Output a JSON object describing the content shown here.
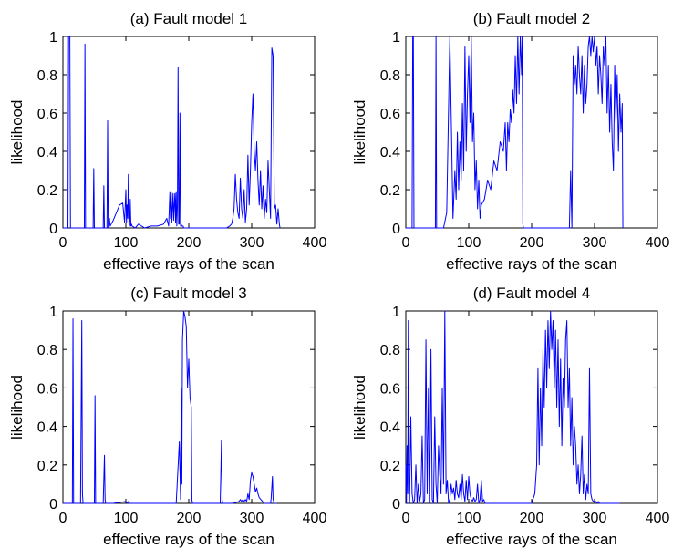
{
  "chart_data": [
    {
      "type": "line",
      "title": "(a) Fault model 1",
      "xlabel": "effective rays of the scan",
      "ylabel": "likelihood",
      "xlim": [
        0,
        400
      ],
      "ylim": [
        0,
        1
      ],
      "xticks": [
        "0",
        "100",
        "200",
        "300",
        "400"
      ],
      "yticks": [
        "0",
        "0.2",
        "0.4",
        "0.6",
        "0.8",
        "1"
      ],
      "series": [
        {
          "name": "likelihood",
          "color": "#0000ff",
          "x": [
            0,
            8,
            9,
            10,
            11,
            12,
            15,
            20,
            30,
            34,
            35,
            36,
            40,
            45,
            48,
            49,
            50,
            55,
            60,
            64,
            65,
            66,
            70,
            71,
            72,
            73,
            74,
            75,
            80,
            85,
            90,
            95,
            98,
            100,
            101,
            102,
            103,
            104,
            105,
            106,
            107,
            108,
            109,
            110,
            115,
            120,
            130,
            140,
            150,
            160,
            165,
            168,
            170,
            171,
            172,
            173,
            174,
            175,
            176,
            177,
            178,
            179,
            180,
            181,
            182,
            183,
            184,
            185,
            186,
            187,
            188,
            189,
            190,
            191,
            192,
            193,
            194,
            195,
            196,
            200,
            210,
            220,
            230,
            240,
            250,
            260,
            265,
            268,
            270,
            272,
            274,
            276,
            278,
            280,
            282,
            284,
            286,
            288,
            290,
            292,
            294,
            296,
            298,
            300,
            302,
            304,
            306,
            308,
            310,
            312,
            314,
            316,
            318,
            320,
            322,
            324,
            326,
            328,
            330,
            332,
            334,
            336,
            338,
            340,
            342,
            344,
            345
          ],
          "y": [
            0,
            0,
            1,
            1,
            1,
            0,
            0,
            0,
            0,
            0,
            0.96,
            0,
            0,
            0,
            0,
            0.31,
            0,
            0,
            0,
            0,
            0.22,
            0,
            0,
            0.56,
            0,
            0.02,
            0.05,
            0.01,
            0.04,
            0.08,
            0.12,
            0.13,
            0.03,
            0.2,
            0.03,
            0.12,
            0.05,
            0.28,
            0.02,
            0.01,
            0.15,
            0.01,
            0.02,
            0.01,
            0,
            0.02,
            0,
            0.01,
            0.01,
            0.02,
            0.05,
            0.01,
            0.19,
            0.05,
            0.19,
            0.03,
            0.1,
            0.18,
            0.04,
            0.12,
            0.18,
            0.03,
            0.19,
            0.01,
            0.12,
            0.84,
            0.02,
            0.02,
            0.6,
            0.01,
            0.02,
            0.01,
            0.01,
            0.01,
            0,
            0,
            0,
            0,
            0,
            0,
            0,
            0,
            0,
            0,
            0,
            0,
            0.01,
            0.02,
            0.05,
            0.1,
            0.28,
            0.15,
            0.08,
            0.05,
            0.26,
            0.1,
            0.05,
            0.2,
            0.03,
            0.1,
            0.38,
            0.12,
            0.3,
            0.55,
            0.7,
            0.4,
            0.3,
            0.45,
            0.25,
            0.12,
            0.3,
            0.1,
            0.22,
            0.05,
            0.15,
            0.08,
            0.35,
            0.2,
            0.05,
            0.94,
            0.9,
            0.1,
            0.12,
            0.02,
            0.1,
            0.02,
            0
          ]
        }
      ]
    },
    {
      "type": "line",
      "title": "(b) Fault model 2",
      "xlabel": "effective rays of the scan",
      "ylabel": "likelihood",
      "xlim": [
        0,
        400
      ],
      "ylim": [
        0,
        1
      ],
      "xticks": [
        "0",
        "100",
        "200",
        "300",
        "400"
      ],
      "yticks": [
        "0",
        "0.2",
        "0.4",
        "0.6",
        "0.8",
        "1"
      ],
      "series": [
        {
          "name": "likelihood",
          "color": "#0000ff",
          "x": [
            0,
            10,
            11,
            12,
            13,
            20,
            30,
            40,
            47,
            48,
            49,
            50,
            55,
            60,
            65,
            70,
            75,
            78,
            80,
            82,
            84,
            86,
            88,
            90,
            92,
            94,
            96,
            98,
            100,
            102,
            104,
            106,
            108,
            110,
            112,
            114,
            116,
            118,
            120,
            125,
            130,
            135,
            140,
            145,
            150,
            155,
            158,
            160,
            162,
            164,
            166,
            168,
            170,
            172,
            174,
            176,
            178,
            180,
            182,
            184,
            185,
            186,
            187,
            188,
            190,
            200,
            210,
            220,
            230,
            240,
            248,
            250,
            252,
            255,
            258,
            260,
            262,
            264,
            266,
            268,
            270,
            272,
            274,
            276,
            278,
            280,
            282,
            284,
            286,
            288,
            290,
            292,
            294,
            296,
            298,
            300,
            302,
            304,
            306,
            308,
            310,
            312,
            314,
            316,
            318,
            320,
            322,
            324,
            326,
            328,
            330,
            332,
            334,
            336,
            338,
            340,
            342,
            344,
            345
          ],
          "y": [
            0,
            0,
            1,
            1,
            0,
            0,
            0,
            0,
            0,
            1,
            0,
            0,
            0,
            0,
            0.08,
            1,
            0.05,
            0.3,
            0.15,
            0.5,
            0.2,
            0.45,
            0.25,
            0.65,
            0.3,
            0.95,
            0.4,
            0.7,
            0.9,
            0.55,
            1,
            0.45,
            0.6,
            0.2,
            0.35,
            0.1,
            0.25,
            0.05,
            0.12,
            0.15,
            0.25,
            0.2,
            0.35,
            0.3,
            0.45,
            0.4,
            0.55,
            0.3,
            0.55,
            0.45,
            0.62,
            0.55,
            0.72,
            0.6,
            0.9,
            0.65,
            1,
            0.7,
            1,
            0.8,
            1,
            0.02,
            0,
            0,
            0,
            0,
            0,
            0,
            0,
            0,
            0,
            0,
            0,
            0,
            0,
            0,
            0.3,
            0,
            0.9,
            0.75,
            0.85,
            0.7,
            0.95,
            0.8,
            0.7,
            0.9,
            0.6,
            0.85,
            0.65,
            0.75,
            0.95,
            1,
            0.9,
            1,
            0.92,
            1,
            0.85,
            0.95,
            0.7,
            0.9,
            0.8,
            0.65,
            0.95,
            0.85,
            1,
            0.6,
            0.85,
            0.5,
            0.75,
            0.45,
            0.3,
            0.85,
            0.55,
            0.8,
            0.4,
            0.7,
            0.5,
            0.65,
            0
          ]
        }
      ]
    },
    {
      "type": "line",
      "title": "(c) Fault model 3",
      "xlabel": "effective rays of the scan",
      "ylabel": "likelihood",
      "xlim": [
        0,
        400
      ],
      "ylim": [
        0,
        1
      ],
      "xticks": [
        "0",
        "100",
        "200",
        "300",
        "400"
      ],
      "yticks": [
        "0",
        "0.2",
        "0.4",
        "0.6",
        "0.8",
        "1"
      ],
      "series": [
        {
          "name": "likelihood",
          "color": "#0000ff",
          "x": [
            0,
            10,
            15,
            16,
            17,
            20,
            28,
            30,
            31,
            32,
            40,
            48,
            50,
            51,
            52,
            60,
            64,
            66,
            67,
            68,
            80,
            100,
            102,
            104,
            106,
            110,
            120,
            140,
            160,
            180,
            185,
            187,
            188,
            189,
            190,
            192,
            194,
            196,
            198,
            200,
            202,
            204,
            205,
            206,
            210,
            220,
            240,
            250,
            252,
            253,
            254,
            260,
            270,
            280,
            282,
            284,
            286,
            288,
            290,
            292,
            294,
            296,
            298,
            300,
            302,
            304,
            306,
            308,
            310,
            312,
            320,
            330,
            331,
            333,
            334,
            336,
            340
          ],
          "y": [
            0,
            0,
            0,
            0.96,
            0,
            0,
            0,
            0.95,
            0.05,
            0,
            0,
            0,
            0,
            0.56,
            0,
            0,
            0,
            0.25,
            0.02,
            0,
            0,
            0.01,
            0,
            0.01,
            0,
            0,
            0,
            0,
            0,
            0,
            0.32,
            0.02,
            0.6,
            0.1,
            0.85,
            1,
            0.97,
            0.92,
            0.6,
            0.75,
            0.55,
            0.5,
            0.02,
            0,
            0,
            0,
            0,
            0,
            0.33,
            0.02,
            0,
            0,
            0,
            0.01,
            0.02,
            0.01,
            0.02,
            0.01,
            0.02,
            0.01,
            0.05,
            0.02,
            0.12,
            0.16,
            0.14,
            0.1,
            0.06,
            0.08,
            0.05,
            0.03,
            0,
            0,
            0.03,
            0.14,
            0.02,
            0,
            0
          ]
        }
      ]
    },
    {
      "type": "line",
      "title": "(d) Fault model 4",
      "xlabel": "effective rays of the scan",
      "ylabel": "likelihood",
      "xlim": [
        0,
        400
      ],
      "ylim": [
        0,
        1
      ],
      "xticks": [
        "0",
        "100",
        "200",
        "300",
        "400"
      ],
      "yticks": [
        "0",
        "0.2",
        "0.4",
        "0.6",
        "0.8",
        "1"
      ],
      "series": [
        {
          "name": "likelihood",
          "color": "#0000ff",
          "x": [
            0,
            1,
            2,
            3,
            4,
            5,
            6,
            8,
            10,
            12,
            14,
            16,
            18,
            20,
            22,
            24,
            26,
            28,
            30,
            32,
            34,
            36,
            38,
            40,
            42,
            44,
            46,
            48,
            50,
            52,
            54,
            56,
            58,
            60,
            62,
            64,
            66,
            68,
            70,
            72,
            74,
            76,
            78,
            80,
            82,
            84,
            86,
            88,
            90,
            92,
            94,
            96,
            98,
            100,
            102,
            104,
            106,
            108,
            110,
            112,
            114,
            116,
            118,
            120,
            122,
            124,
            126,
            130,
            140,
            150,
            160,
            170,
            180,
            190,
            200,
            205,
            208,
            210,
            212,
            214,
            216,
            218,
            220,
            222,
            224,
            226,
            228,
            230,
            232,
            234,
            236,
            238,
            240,
            242,
            244,
            246,
            248,
            250,
            252,
            254,
            256,
            258,
            260,
            262,
            264,
            266,
            268,
            270,
            272,
            274,
            276,
            278,
            280,
            282,
            284,
            286,
            288,
            290,
            292,
            294,
            296,
            298,
            300,
            302,
            304,
            306,
            308,
            310,
            315,
            320,
            330,
            340
          ],
          "y": [
            0.2,
            0,
            0.3,
            0.05,
            0.95,
            0.02,
            0,
            0.45,
            0.05,
            0,
            0.02,
            0.2,
            0,
            0.1,
            0.01,
            0.05,
            0.35,
            0,
            0.02,
            0.85,
            0.05,
            0.6,
            0,
            0.8,
            0.02,
            0,
            0.45,
            0.1,
            0,
            0.3,
            0.15,
            0.05,
            0.6,
            0.1,
            1,
            0.05,
            0.12,
            0,
            0.02,
            0.1,
            0.05,
            0.08,
            0.02,
            0.12,
            0.05,
            0.03,
            0.1,
            0.02,
            0.15,
            0.05,
            0.01,
            0.12,
            0.02,
            0.14,
            0.05,
            0.02,
            0.01,
            0.03,
            0.01,
            0.02,
            0.1,
            0,
            0.02,
            0.12,
            0.01,
            0.02,
            0,
            0,
            0,
            0,
            0,
            0,
            0,
            0,
            0,
            0.05,
            0.2,
            0.7,
            0.2,
            0.6,
            0.3,
            0.8,
            0.5,
            0.9,
            0.6,
            0.95,
            0.7,
            1,
            0.8,
            0.95,
            0.6,
            0.9,
            0.5,
            0.85,
            0.4,
            0.75,
            0.3,
            0.65,
            0.5,
            0.85,
            0.95,
            0.5,
            0.7,
            0.3,
            0.55,
            0.2,
            0.4,
            0.3,
            0.1,
            0.2,
            0.05,
            0.15,
            0.35,
            0.05,
            0.15,
            0.02,
            0.1,
            0.05,
            0.7,
            0.05,
            0.02,
            0.01,
            0.01,
            0.01,
            0,
            0.01,
            0,
            0,
            0,
            0,
            0,
            0
          ]
        }
      ]
    }
  ]
}
